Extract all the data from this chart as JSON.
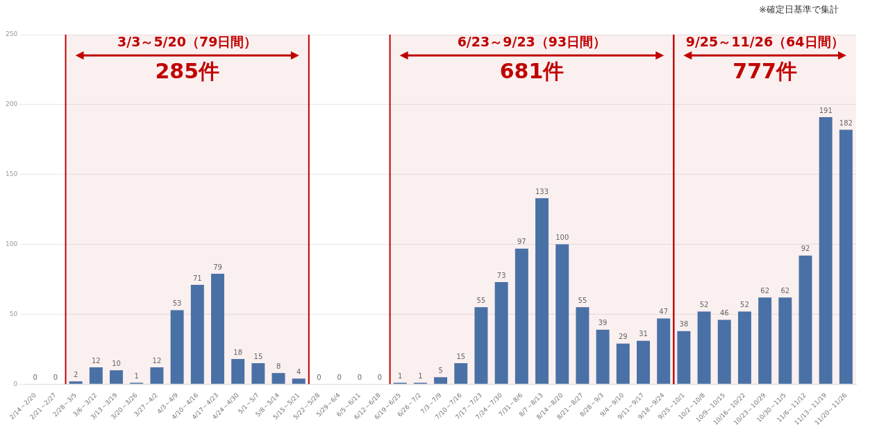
{
  "chart_data": {
    "type": "bar",
    "categories": [
      "2/14～2/20",
      "2/21～2/27",
      "2/28～3/5",
      "3/6～3/12",
      "3/13～3/19",
      "3/20～3/26",
      "3/27～4/2",
      "4/3～4/9",
      "4/10～4/16",
      "4/17～4/23",
      "4/24～4/30",
      "5/1～5/7",
      "5/8～5/14",
      "5/15～5/21",
      "5/22～5/28",
      "5/29～6/4",
      "6/5～6/11",
      "6/12～6/18",
      "6/19～6/25",
      "6/26～7/2",
      "7/3～7/9",
      "7/10～7/16",
      "7/17～7/23",
      "7/24～7/30",
      "7/31～8/6",
      "8/7～8/13",
      "8/14～8/20",
      "8/21～8/27",
      "8/28～9/3",
      "9/4～9/10",
      "9/11～9/17",
      "9/18～9/24",
      "9/25～10/1",
      "10/2～10/8",
      "10/9～10/15",
      "10/16～10/22",
      "10/23～10/29",
      "10/30～11/5",
      "11/6～11/12",
      "11/13～11/19",
      "11/20～11/26"
    ],
    "values": [
      0,
      0,
      2,
      12,
      10,
      1,
      12,
      53,
      71,
      79,
      18,
      15,
      8,
      4,
      0,
      0,
      0,
      0,
      1,
      1,
      5,
      15,
      55,
      73,
      97,
      133,
      100,
      55,
      39,
      29,
      31,
      47,
      38,
      52,
      46,
      52,
      62,
      62,
      92,
      191,
      182
    ],
    "color": "#4a71a5",
    "ylim": [
      0,
      250
    ],
    "yticks": [
      0,
      50,
      100,
      150,
      200,
      250
    ],
    "grid": "y",
    "data_labels": true,
    "bands": [
      {
        "axis": "x",
        "from": "2/28～3/5",
        "to": "5/15～5/21",
        "label": "3/3～5/20（79日間）",
        "color": "#c00000"
      },
      {
        "axis": "x",
        "from": "6/19～6/25",
        "to": "9/18～9/24",
        "label": "6/23～9/23（93日間）",
        "color": "#c00000"
      },
      {
        "axis": "x",
        "from": "9/25～10/1",
        "to": "11/20～11/26",
        "label": "9/25～11/26（64日間）",
        "color": "#c00000"
      }
    ],
    "annotations": [
      "※確定日基準で集計",
      "285件",
      "681件",
      "777件"
    ]
  }
}
